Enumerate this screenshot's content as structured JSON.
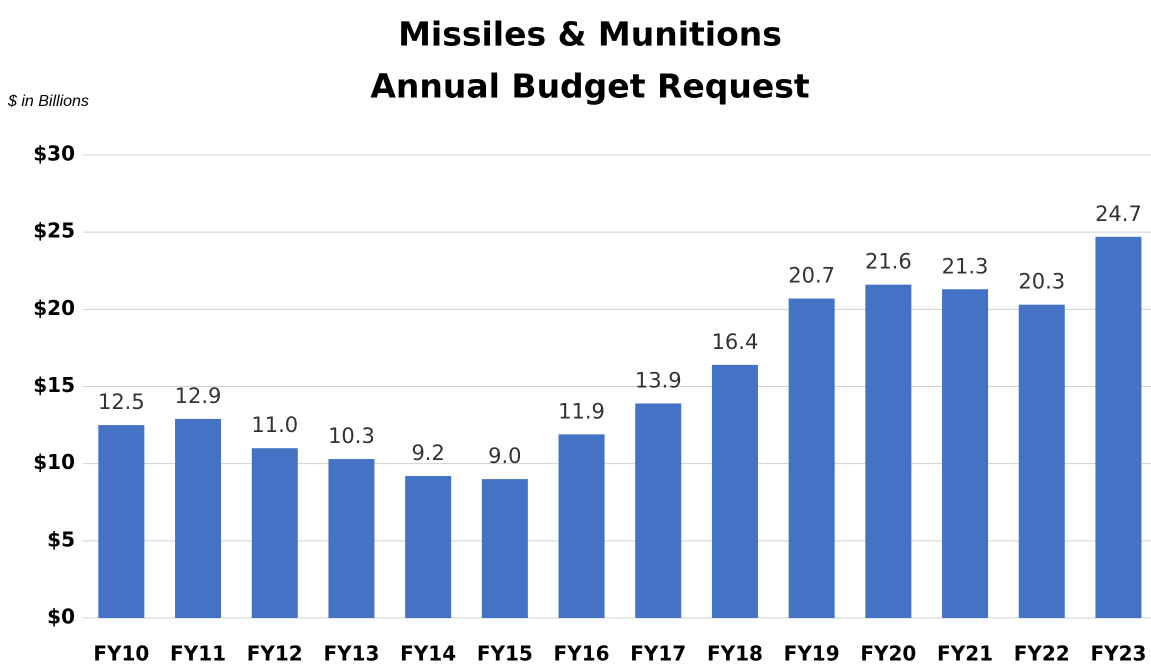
{
  "chart_data": {
    "type": "bar",
    "title": [
      "Missiles & Munitions",
      "Annual Budget Request"
    ],
    "subtitle": "$ in Billions",
    "categories": [
      "FY10",
      "FY11",
      "FY12",
      "FY13",
      "FY14",
      "FY15",
      "FY16",
      "FY17",
      "FY18",
      "FY19",
      "FY20",
      "FY21",
      "FY22",
      "FY23"
    ],
    "values": [
      12.5,
      12.9,
      11.0,
      10.3,
      9.2,
      9.0,
      11.9,
      13.9,
      16.4,
      20.7,
      21.6,
      21.3,
      20.3,
      24.7
    ],
    "value_labels": [
      "12.5",
      "12.9",
      "11.0",
      "10.3",
      "9.2",
      "9.0",
      "11.9",
      "13.9",
      "16.4",
      "20.7",
      "21.6",
      "21.3",
      "20.3",
      "24.7"
    ],
    "color": "#4472c4",
    "ylim": [
      0,
      30
    ],
    "yticks": [
      {
        "value": 0,
        "label": "$0"
      },
      {
        "value": 5,
        "label": "$5"
      },
      {
        "value": 10,
        "label": "$10"
      },
      {
        "value": 15,
        "label": "$15"
      },
      {
        "value": 20,
        "label": "$20"
      },
      {
        "value": 25,
        "label": "$25"
      },
      {
        "value": 30,
        "label": "$30"
      }
    ],
    "grid": true
  }
}
